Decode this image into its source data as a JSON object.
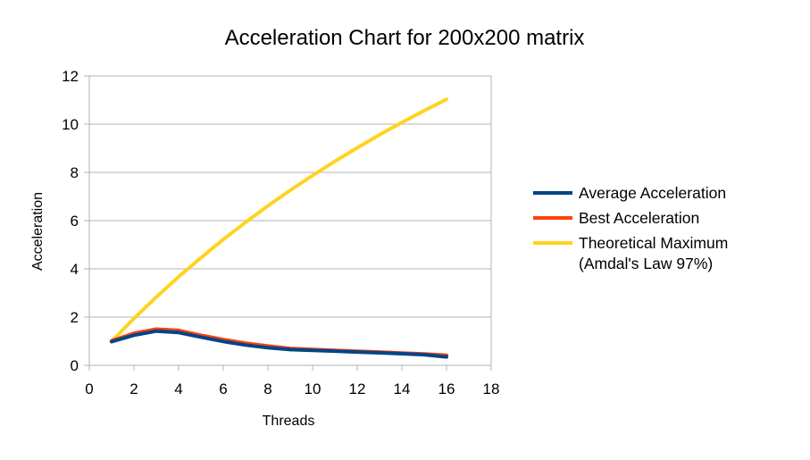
{
  "chart_data": {
    "type": "line",
    "title": "Acceleration Chart for 200x200 matrix",
    "xlabel": "Threads",
    "ylabel": "Acceleration",
    "xlim": [
      0,
      18
    ],
    "ylim": [
      0,
      12
    ],
    "x_ticks": [
      0,
      2,
      4,
      6,
      8,
      10,
      12,
      14,
      16,
      18
    ],
    "y_ticks": [
      0,
      2,
      4,
      6,
      8,
      10,
      12
    ],
    "x_tick_labels": [
      "0",
      "2",
      "4",
      "6",
      "8",
      "10",
      "12",
      "14",
      "16",
      "18"
    ],
    "y_tick_labels": [
      "0",
      "2",
      "4",
      "6",
      "8",
      "10",
      "12"
    ],
    "grid": "horizontal",
    "legend_position": "right",
    "x": [
      1,
      2,
      3,
      4,
      5,
      6,
      7,
      8,
      9,
      10,
      11,
      12,
      13,
      14,
      15,
      16
    ],
    "series": [
      {
        "name": "Average Acceleration",
        "color": "#004586",
        "values": [
          0.98,
          1.25,
          1.42,
          1.36,
          1.17,
          0.99,
          0.84,
          0.73,
          0.65,
          0.62,
          0.59,
          0.55,
          0.52,
          0.48,
          0.44,
          0.35
        ]
      },
      {
        "name": "Best Acceleration",
        "color": "#FF420E",
        "values": [
          1.02,
          1.33,
          1.5,
          1.45,
          1.25,
          1.07,
          0.92,
          0.8,
          0.7,
          0.66,
          0.62,
          0.58,
          0.55,
          0.51,
          0.47,
          0.42
        ]
      },
      {
        "name": "Theoretical Maximum (Amdal's Law 97%)",
        "legend_lines": [
          "Theoretical Maximum",
          "(Amdal's Law 97%)"
        ],
        "color": "#FFD320",
        "values": [
          1.0,
          1.94,
          2.83,
          3.67,
          4.46,
          5.22,
          5.93,
          6.61,
          7.26,
          7.87,
          8.46,
          9.02,
          9.56,
          10.07,
          10.56,
          11.03
        ]
      }
    ]
  }
}
